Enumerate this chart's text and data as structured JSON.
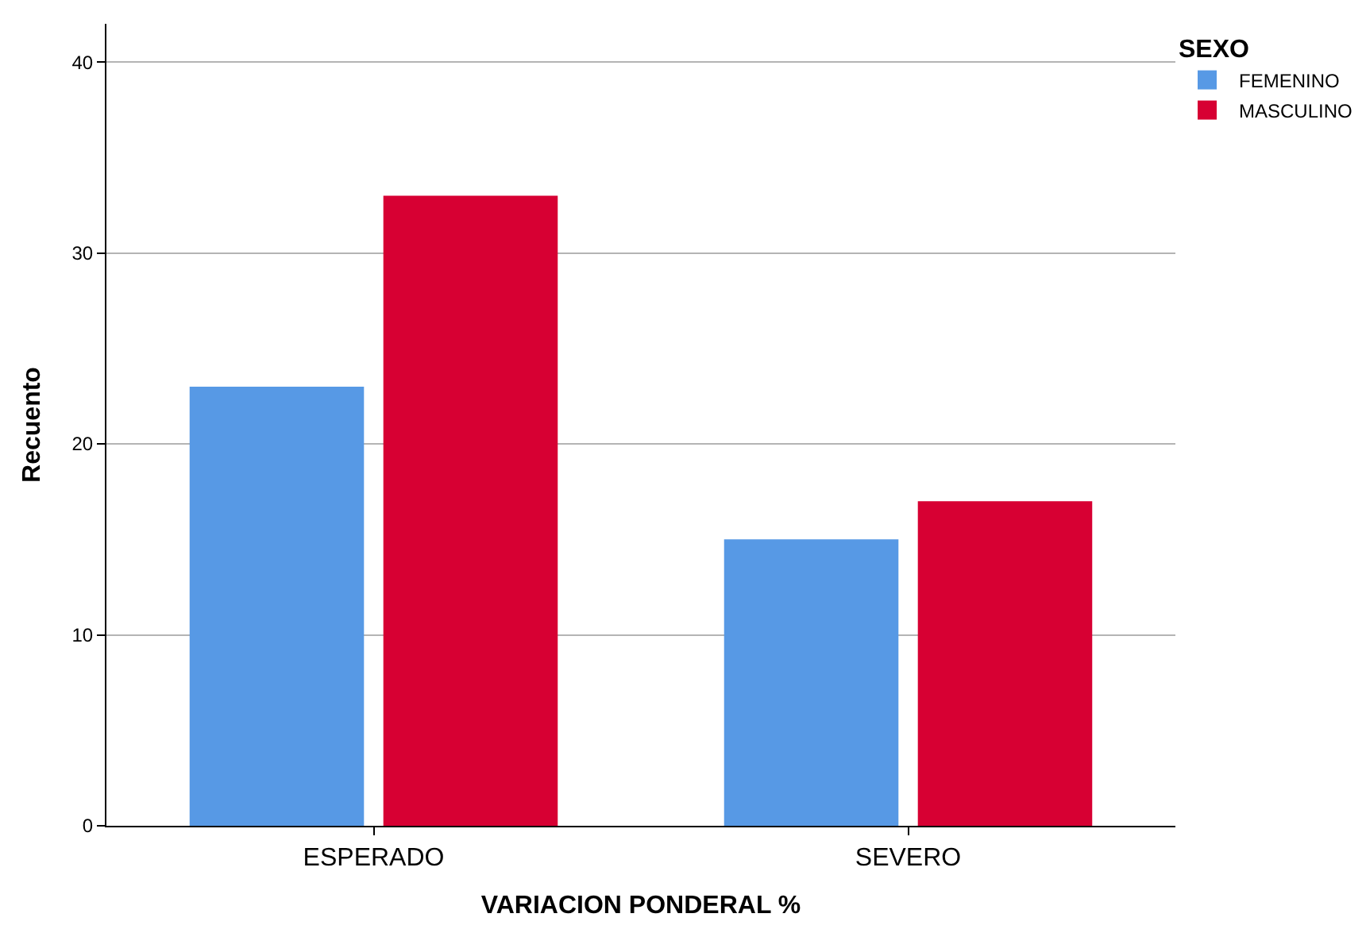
{
  "chart_data": {
    "type": "bar",
    "xlabel": "VARIACION PONDERAL %",
    "ylabel": "Recuento",
    "legend_title": "SEXO",
    "categories": [
      "ESPERADO",
      "SEVERO"
    ],
    "series": [
      {
        "name": "FEMENINO",
        "color": "#5799e5",
        "values": [
          23,
          15
        ]
      },
      {
        "name": "MASCULINO",
        "color": "#d70033",
        "values": [
          33,
          17
        ]
      }
    ],
    "ylim": [
      0,
      42
    ],
    "yticks": [
      0,
      10,
      20,
      30,
      40
    ],
    "grid": "y",
    "legend": "top right"
  }
}
